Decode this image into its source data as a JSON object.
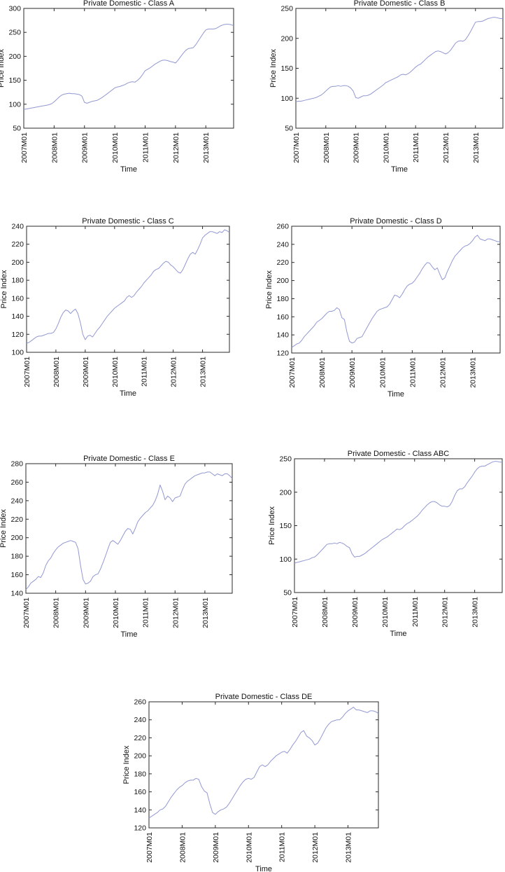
{
  "figure": {
    "line_color": "#9298d2",
    "axis_color": "#2a2a2a",
    "text_color": "#111111",
    "background": "#ffffff"
  },
  "chart_data": [
    {
      "type": "line",
      "title": "Private Domestic - Class A",
      "xlabel": "Time",
      "ylabel": "Price Index",
      "x_start": "2007M01",
      "x_end": "2013M12",
      "x_unit": "month",
      "xtick_labels": [
        "2007M01",
        "2008M01",
        "2009M01",
        "2010M01",
        "2011M01",
        "2012M01",
        "2013M01"
      ],
      "xtick_month_index": [
        0,
        12,
        24,
        36,
        48,
        60,
        72
      ],
      "ylim": [
        50,
        300
      ],
      "ytick_step": 50,
      "grid": false,
      "legend": null,
      "values": [
        89,
        90,
        91,
        92,
        93,
        94,
        95,
        96,
        97,
        98,
        99,
        101,
        105,
        110,
        115,
        119,
        121,
        122,
        123,
        122,
        122,
        121,
        120,
        117,
        104,
        102,
        104,
        106,
        107,
        108,
        111,
        114,
        118,
        122,
        126,
        130,
        134,
        136,
        137,
        139,
        141,
        144,
        146,
        147,
        146,
        150,
        155,
        162,
        170,
        173,
        176,
        180,
        184,
        187,
        190,
        192,
        192,
        191,
        189,
        188,
        186,
        192,
        199,
        206,
        212,
        216,
        217,
        218,
        224,
        232,
        240,
        248,
        255,
        257,
        257,
        257,
        258,
        261,
        264,
        266,
        267,
        267,
        266,
        264
      ]
    },
    {
      "type": "line",
      "title": "Private Domestic - Class B",
      "xlabel": "Time",
      "ylabel": "Price Index",
      "x_start": "2007M01",
      "x_end": "2013M12",
      "x_unit": "month",
      "xtick_labels": [
        "2007M01",
        "2008M01",
        "2009M01",
        "2010M01",
        "2011M01",
        "2012M01",
        "2013M01"
      ],
      "xtick_month_index": [
        0,
        12,
        24,
        36,
        48,
        60,
        72
      ],
      "ylim": [
        50,
        250
      ],
      "ytick_step": 50,
      "grid": false,
      "legend": null,
      "values": [
        94,
        95,
        95,
        96,
        97,
        98,
        99,
        100,
        101,
        103,
        105,
        108,
        112,
        116,
        119,
        120,
        120,
        121,
        120,
        121,
        121,
        120,
        117,
        112,
        101,
        100,
        102,
        104,
        104,
        105,
        107,
        110,
        113,
        116,
        119,
        122,
        126,
        128,
        130,
        132,
        134,
        136,
        139,
        140,
        139,
        141,
        144,
        148,
        152,
        155,
        157,
        161,
        165,
        169,
        172,
        175,
        178,
        179,
        178,
        176,
        174,
        176,
        180,
        186,
        192,
        195,
        196,
        195,
        198,
        204,
        211,
        219,
        227,
        228,
        228,
        229,
        231,
        233,
        234,
        235,
        235,
        234,
        233,
        233
      ]
    },
    {
      "type": "line",
      "title": "Private Domestic - Class C",
      "xlabel": "Time",
      "ylabel": "Price Index",
      "x_start": "2007M01",
      "x_end": "2013M12",
      "x_unit": "month",
      "xtick_labels": [
        "2007M01",
        "2008M01",
        "2009M01",
        "2010M01",
        "2011M01",
        "2012M01",
        "2013M01"
      ],
      "xtick_month_index": [
        0,
        12,
        24,
        36,
        48,
        60,
        72
      ],
      "ylim": [
        100,
        240
      ],
      "ytick_step": 20,
      "grid": false,
      "legend": null,
      "values": [
        110,
        111,
        113,
        115,
        117,
        118,
        118,
        119,
        120,
        121,
        121,
        122,
        126,
        132,
        139,
        144,
        147,
        146,
        143,
        146,
        148,
        143,
        133,
        120,
        114,
        118,
        119,
        117,
        121,
        125,
        128,
        132,
        136,
        140,
        143,
        146,
        149,
        151,
        153,
        155,
        157,
        161,
        163,
        161,
        163,
        167,
        170,
        173,
        177,
        180,
        183,
        186,
        190,
        192,
        193,
        196,
        199,
        201,
        200,
        197,
        195,
        192,
        189,
        188,
        192,
        198,
        204,
        209,
        211,
        209,
        214,
        220,
        227,
        230,
        232,
        234,
        234,
        233,
        232,
        234,
        233,
        236,
        235,
        233
      ]
    },
    {
      "type": "line",
      "title": "Private Domestic - Class D",
      "xlabel": "Time",
      "ylabel": "Price Index",
      "x_start": "2007M01",
      "x_end": "2013M12",
      "x_unit": "month",
      "xtick_labels": [
        "2007M01",
        "2008M01",
        "2009M01",
        "2010M01",
        "2011M01",
        "2012M01",
        "2013M01"
      ],
      "xtick_month_index": [
        0,
        12,
        24,
        36,
        48,
        60,
        72
      ],
      "ylim": [
        120,
        260
      ],
      "ytick_step": 20,
      "grid": false,
      "legend": null,
      "values": [
        126,
        128,
        130,
        131,
        134,
        138,
        141,
        144,
        147,
        150,
        154,
        156,
        158,
        161,
        164,
        166,
        166,
        167,
        170,
        168,
        159,
        157,
        143,
        133,
        131,
        132,
        136,
        137,
        138,
        143,
        148,
        153,
        158,
        162,
        166,
        168,
        169,
        170,
        171,
        174,
        179,
        184,
        183,
        181,
        185,
        190,
        194,
        196,
        197,
        200,
        204,
        208,
        213,
        217,
        220,
        219,
        215,
        212,
        214,
        207,
        201,
        203,
        210,
        216,
        222,
        227,
        230,
        233,
        236,
        238,
        239,
        241,
        244,
        248,
        250,
        246,
        245,
        244,
        246,
        246,
        245,
        244,
        243,
        243
      ]
    },
    {
      "type": "line",
      "title": "Private Domestic - Class E",
      "xlabel": "Time",
      "ylabel": "Price Index",
      "x_start": "2007M01",
      "x_end": "2013M12",
      "x_unit": "month",
      "xtick_labels": [
        "2007M01",
        "2008M01",
        "2009M01",
        "2010M01",
        "2011M01",
        "2012M01",
        "2013M01"
      ],
      "xtick_month_index": [
        0,
        12,
        24,
        36,
        48,
        60,
        72
      ],
      "ylim": [
        140,
        280
      ],
      "ytick_step": 20,
      "grid": false,
      "legend": null,
      "values": [
        144,
        147,
        151,
        153,
        155,
        158,
        157,
        162,
        170,
        175,
        178,
        183,
        187,
        190,
        192,
        194,
        195,
        196,
        197,
        196,
        195,
        188,
        170,
        155,
        150,
        151,
        153,
        158,
        160,
        161,
        166,
        173,
        180,
        188,
        195,
        197,
        195,
        193,
        197,
        202,
        207,
        210,
        209,
        204,
        210,
        217,
        221,
        224,
        227,
        229,
        232,
        235,
        240,
        247,
        257,
        250,
        241,
        245,
        243,
        239,
        243,
        244,
        245,
        252,
        258,
        261,
        263,
        265,
        267,
        268,
        269,
        270,
        270,
        271,
        271,
        269,
        267,
        269,
        268,
        267,
        269,
        269,
        267,
        264
      ]
    },
    {
      "type": "line",
      "title": "Private Domestic - Class ABC",
      "xlabel": "Time",
      "ylabel": "Price Index",
      "x_start": "2007M01",
      "x_end": "2013M12",
      "x_unit": "month",
      "xtick_labels": [
        "2007M01",
        "2008M01",
        "2009M01",
        "2010M01",
        "2011M01",
        "2012M01",
        "2013M01"
      ],
      "xtick_month_index": [
        0,
        12,
        24,
        36,
        48,
        60,
        72
      ],
      "ylim": [
        50,
        250
      ],
      "ytick_step": 50,
      "grid": false,
      "legend": null,
      "values": [
        94,
        95,
        96,
        97,
        98,
        99,
        100,
        102,
        103,
        106,
        110,
        114,
        118,
        122,
        123,
        123,
        124,
        123,
        125,
        124,
        122,
        119,
        117,
        108,
        103,
        104,
        104,
        106,
        108,
        111,
        114,
        117,
        120,
        123,
        126,
        129,
        131,
        133,
        136,
        139,
        142,
        145,
        144,
        146,
        150,
        153,
        155,
        158,
        161,
        164,
        168,
        173,
        177,
        181,
        184,
        186,
        186,
        184,
        181,
        179,
        179,
        178,
        180,
        186,
        195,
        202,
        205,
        205,
        208,
        214,
        219,
        224,
        230,
        235,
        238,
        239,
        239,
        241,
        243,
        245,
        246,
        246,
        245,
        245
      ]
    },
    {
      "type": "line",
      "title": "Private Domestic - Class DE",
      "xlabel": "Time",
      "ylabel": "Price Index",
      "x_start": "2007M01",
      "x_end": "2013M12",
      "x_unit": "month",
      "xtick_labels": [
        "2007M01",
        "2008M01",
        "2009M01",
        "2010M01",
        "2011M01",
        "2012M01",
        "2013M01"
      ],
      "xtick_month_index": [
        0,
        12,
        24,
        36,
        48,
        60,
        72
      ],
      "ylim": [
        120,
        260
      ],
      "ytick_step": 20,
      "grid": false,
      "legend": null,
      "values": [
        131,
        133,
        135,
        137,
        140,
        141,
        144,
        149,
        154,
        158,
        162,
        165,
        167,
        170,
        172,
        173,
        173,
        175,
        174,
        166,
        161,
        159,
        147,
        137,
        135,
        138,
        140,
        141,
        143,
        147,
        152,
        157,
        162,
        167,
        171,
        174,
        175,
        174,
        176,
        182,
        188,
        190,
        188,
        190,
        194,
        197,
        200,
        202,
        204,
        205,
        203,
        207,
        212,
        216,
        221,
        226,
        228,
        222,
        220,
        217,
        212,
        214,
        219,
        225,
        231,
        235,
        238,
        239,
        240,
        240,
        243,
        247,
        250,
        252,
        254,
        251,
        251,
        250,
        249,
        248,
        250,
        250,
        249,
        247
      ]
    }
  ]
}
